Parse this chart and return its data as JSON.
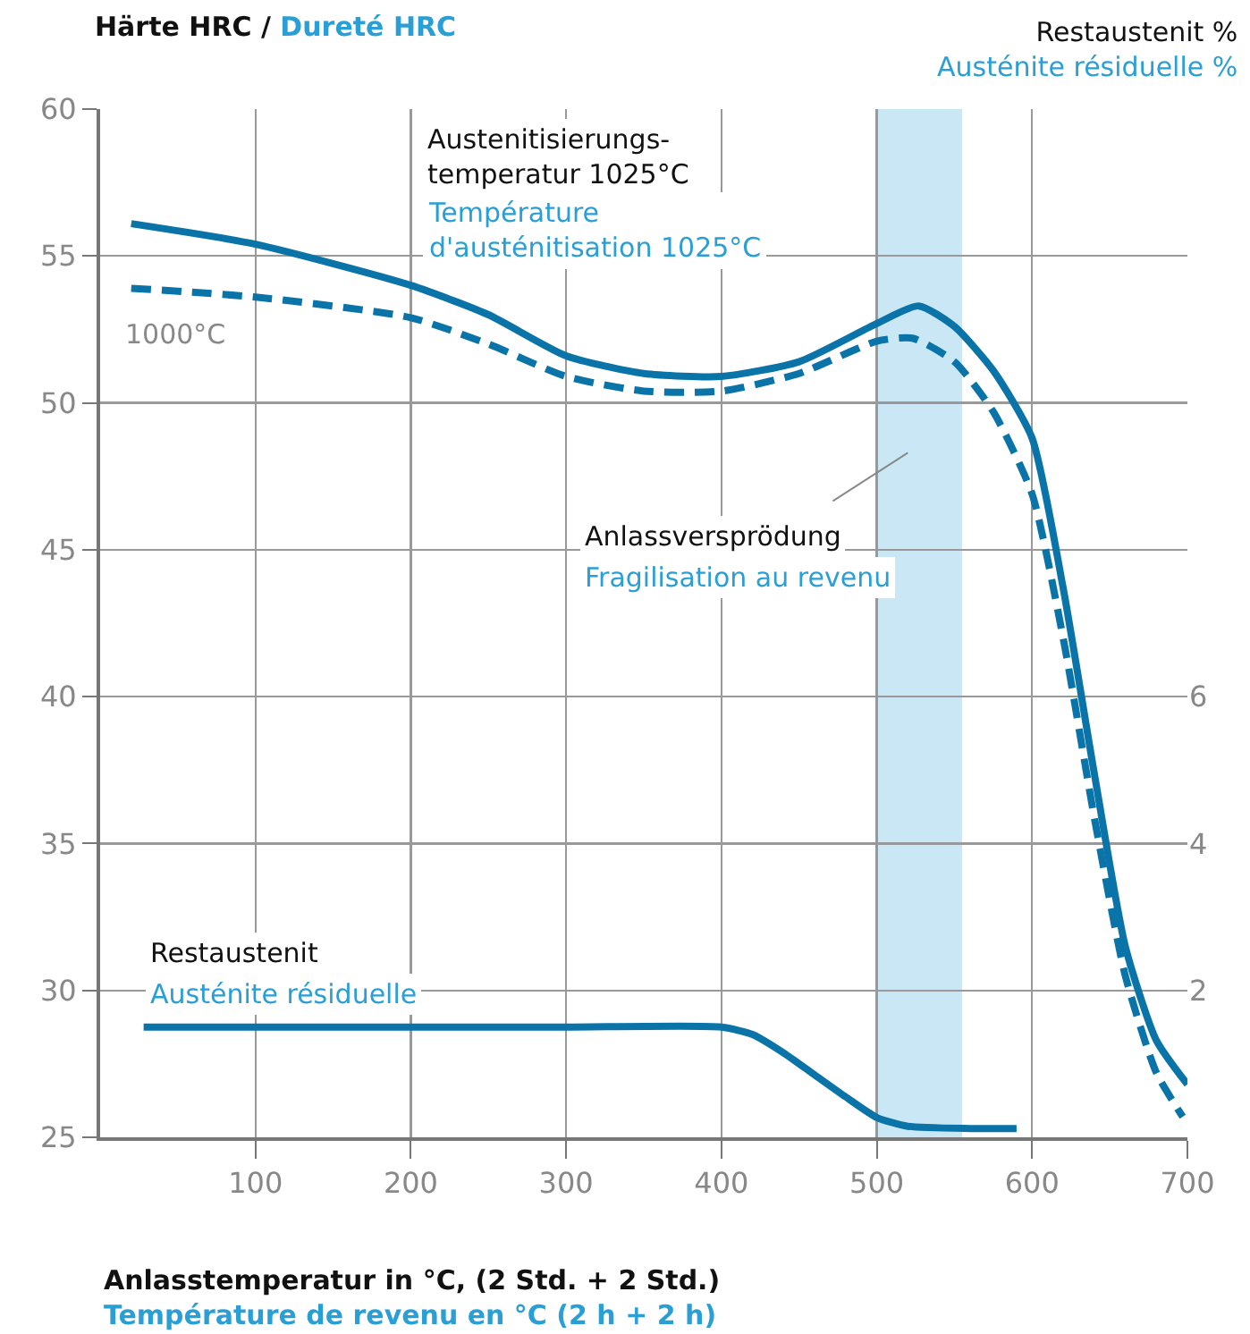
{
  "chart_data": {
    "type": "line",
    "ylabel": "Härte HRC / Dureté HRC",
    "y2label": "Restaustenit %\nAusténite résiduelle %",
    "xlabel": "Anlasstemperatur in °C, (2 Std. + 2 Std.)\nTempérature de revenu en °C (2 h + 2 h)",
    "xlim": [
      0,
      700
    ],
    "xticks": [
      100,
      200,
      300,
      400,
      500,
      600,
      700
    ],
    "ylim": [
      25,
      60
    ],
    "yticks": [
      25,
      30,
      35,
      40,
      45,
      50,
      55,
      60
    ],
    "y2lim": [
      0,
      14
    ],
    "y2ticks": [
      2,
      4,
      6
    ],
    "grid": true,
    "series": [
      {
        "color": "#0a74a8",
        "line_style": "solid",
        "x": [
          20,
          100,
          200,
          250,
          300,
          350,
          400,
          450,
          500,
          527,
          550,
          575,
          600,
          620,
          640,
          660,
          680,
          700
        ],
        "values": [
          56.1,
          55.4,
          54.0,
          53.0,
          51.6,
          51.0,
          50.9,
          51.4,
          52.7,
          53.3,
          52.6,
          51.1,
          48.8,
          43.7,
          37.4,
          31.5,
          28.3,
          26.8
        ]
      },
      {
        "name": "1000°C",
        "color": "#0a74a8",
        "line_style": "dashed",
        "x": [
          20,
          100,
          200,
          250,
          300,
          350,
          400,
          450,
          500,
          523,
          550,
          575,
          600,
          620,
          640,
          660,
          680,
          697
        ],
        "values": [
          53.9,
          53.6,
          52.9,
          52.0,
          50.9,
          50.4,
          50.4,
          51.0,
          52.1,
          52.2,
          51.4,
          49.7,
          46.9,
          42.0,
          35.9,
          30.5,
          27.2,
          25.7
        ]
      },
      {
        "color": "#0a74a8",
        "line_style": "solid",
        "axis": "y2",
        "x": [
          28,
          100,
          200,
          300,
          400,
          420,
          440,
          460,
          480,
          500,
          520,
          560,
          590
        ],
        "values": [
          1.5,
          1.5,
          1.5,
          1.5,
          1.5,
          1.4,
          1.15,
          0.85,
          0.55,
          0.27,
          0.15,
          0.12,
          0.12
        ]
      }
    ],
    "bands": [
      {
        "axis": "x",
        "from": 500,
        "to": 555,
        "color": "#2a9fd6"
      }
    ],
    "annotations": [
      "Austenitisierungs-\ntemperatur 1025°C",
      "Température\nd'austénitisation 1025°C",
      "Anlassversprödung",
      "Fragilisation au revenu",
      "Restaustenit",
      "Austénite résiduelle"
    ]
  }
}
